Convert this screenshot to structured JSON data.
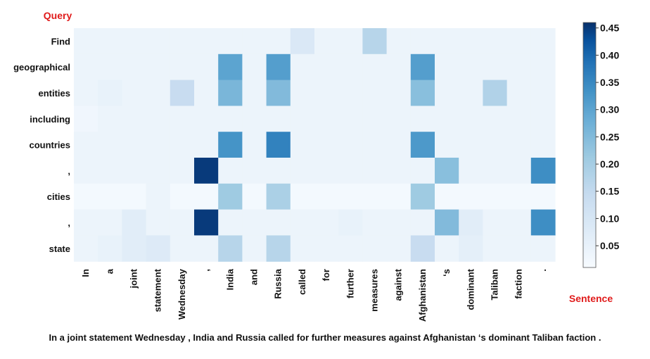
{
  "labels": {
    "query": "Query",
    "sentence": "Sentence"
  },
  "caption": "In a joint statement Wednesday , India and Russia called for further measures against Afghanistan ‘s dominant Taliban faction .",
  "colors": {
    "low": "#f7fbff",
    "high": "#08306b",
    "label_red": "#e01b1b"
  },
  "chart_data": {
    "type": "heatmap",
    "rows": [
      "Find",
      "geographical",
      "entities",
      "including",
      "countries",
      ",",
      "cities",
      ",",
      "state"
    ],
    "columns": [
      "In",
      "a",
      "joint",
      "statement",
      "Wednesday",
      ",",
      "India",
      "and",
      "Russia",
      "called",
      "for",
      "further",
      "measures",
      "against",
      "Afghanistan",
      "‘s",
      "dominant",
      "Taliban",
      "faction",
      "."
    ],
    "values": [
      [
        0.04,
        0.04,
        0.04,
        0.04,
        0.04,
        0.04,
        0.04,
        0.04,
        0.04,
        0.09,
        0.04,
        0.04,
        0.17,
        0.04,
        0.04,
        0.04,
        0.04,
        0.04,
        0.04,
        0.04
      ],
      [
        0.04,
        0.04,
        0.04,
        0.04,
        0.04,
        0.04,
        0.3,
        0.04,
        0.31,
        0.04,
        0.04,
        0.04,
        0.04,
        0.04,
        0.31,
        0.04,
        0.04,
        0.04,
        0.04,
        0.04
      ],
      [
        0.04,
        0.05,
        0.04,
        0.04,
        0.14,
        0.04,
        0.26,
        0.04,
        0.25,
        0.04,
        0.04,
        0.04,
        0.04,
        0.04,
        0.24,
        0.04,
        0.04,
        0.18,
        0.04,
        0.04
      ],
      [
        0.03,
        0.04,
        0.04,
        0.04,
        0.04,
        0.04,
        0.04,
        0.04,
        0.04,
        0.04,
        0.04,
        0.04,
        0.04,
        0.04,
        0.04,
        0.04,
        0.04,
        0.04,
        0.04,
        0.04
      ],
      [
        0.04,
        0.04,
        0.04,
        0.04,
        0.04,
        0.04,
        0.33,
        0.04,
        0.36,
        0.04,
        0.04,
        0.04,
        0.04,
        0.04,
        0.32,
        0.04,
        0.04,
        0.04,
        0.04,
        0.04
      ],
      [
        0.04,
        0.04,
        0.04,
        0.04,
        0.04,
        0.45,
        0.04,
        0.04,
        0.04,
        0.04,
        0.04,
        0.04,
        0.04,
        0.04,
        0.04,
        0.24,
        0.04,
        0.04,
        0.04,
        0.34
      ],
      [
        0.02,
        0.02,
        0.02,
        0.04,
        0.02,
        0.02,
        0.21,
        0.02,
        0.19,
        0.02,
        0.02,
        0.02,
        0.02,
        0.02,
        0.21,
        0.02,
        0.02,
        0.02,
        0.02,
        0.02
      ],
      [
        0.04,
        0.04,
        0.07,
        0.04,
        0.04,
        0.45,
        0.04,
        0.04,
        0.04,
        0.04,
        0.04,
        0.05,
        0.04,
        0.04,
        0.04,
        0.25,
        0.07,
        0.04,
        0.04,
        0.34
      ],
      [
        0.04,
        0.05,
        0.07,
        0.08,
        0.04,
        0.04,
        0.17,
        0.04,
        0.17,
        0.04,
        0.04,
        0.04,
        0.04,
        0.04,
        0.14,
        0.04,
        0.06,
        0.04,
        0.04,
        0.04
      ]
    ],
    "colorbar": {
      "ticks": [
        0.45,
        0.4,
        0.35,
        0.3,
        0.25,
        0.2,
        0.15,
        0.1,
        0.05
      ],
      "range": [
        0.01,
        0.46
      ]
    }
  }
}
